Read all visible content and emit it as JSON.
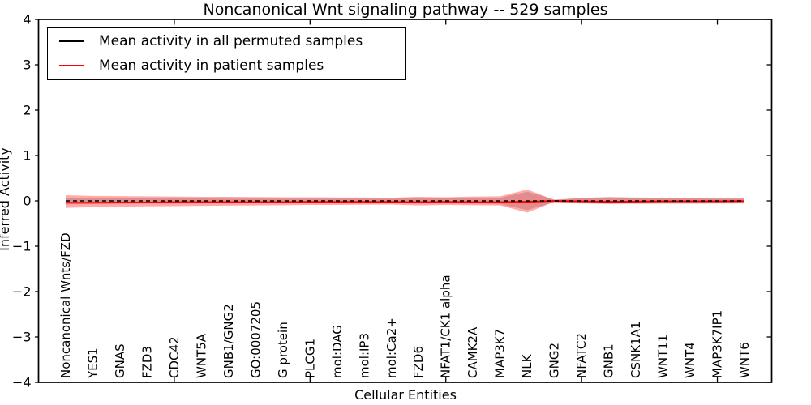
{
  "title": "Noncanonical Wnt signaling pathway -- 529 samples",
  "legend": {
    "items": [
      {
        "label": "Mean activity in all permuted samples",
        "color": "#000000"
      },
      {
        "label": "Mean activity in patient samples",
        "color": "#ff0000"
      }
    ]
  },
  "chart_data": {
    "type": "line",
    "title": "Noncanonical Wnt signaling pathway -- 529 samples",
    "xlabel": "Cellular Entities",
    "ylabel": "Inferred Activity",
    "xlim": [
      0,
      27
    ],
    "ylim": [
      -4,
      4
    ],
    "grid": false,
    "legend_position": "upper left",
    "ytick_values": [
      4,
      3,
      2,
      1,
      0,
      -1,
      -2,
      -3,
      -4
    ],
    "ytick_labels": [
      "4",
      "3",
      "2",
      "1",
      "0",
      "−1",
      "−2",
      "−3",
      "−4"
    ],
    "xtick_major_positions": [
      5,
      10,
      15,
      20,
      25
    ],
    "categories": [
      "Noncanonical Wnts/FZD",
      "YES1",
      "GNAS",
      "FZD3",
      "CDC42",
      "WNT5A",
      "GNB1/GNG2",
      "GO:0007205",
      "G protein",
      "PLCG1",
      "mol:DAG",
      "mol:IP3",
      "mol:Ca2+",
      "FZD6",
      "NFAT1/CK1 alpha",
      "CAMK2A",
      "MAP3K7",
      "NLK",
      "GNG2",
      "NFATC2",
      "GNB1",
      "CSNK1A1",
      "WNT11",
      "WNT4",
      "MAP3K7IP1",
      "WNT6"
    ],
    "series": [
      {
        "name": "Mean activity in all permuted samples",
        "color": "#000000",
        "style": "dashed",
        "width": 1.4,
        "values": [
          0,
          0,
          0,
          0,
          0,
          0,
          0,
          0,
          0,
          0,
          0,
          0,
          0,
          0,
          0,
          0,
          0,
          0,
          0,
          0,
          0,
          0,
          0,
          0,
          0,
          0
        ]
      },
      {
        "name": "Mean activity in patient samples",
        "color": "#ff0000",
        "style": "solid",
        "width": 2,
        "values": [
          -0.04,
          -0.04,
          -0.035,
          -0.035,
          -0.03,
          -0.03,
          -0.03,
          -0.03,
          -0.03,
          -0.025,
          -0.025,
          -0.025,
          -0.025,
          -0.03,
          -0.025,
          -0.03,
          -0.03,
          -0.02,
          0,
          -0.01,
          -0.02,
          -0.015,
          -0.01,
          -0.01,
          -0.01,
          -0.005
        ]
      }
    ],
    "bands": [
      {
        "name": "permuted-samples-std-band",
        "color": "rgba(110,110,110,0.30)",
        "top": [
          0.07,
          0.065,
          0.06,
          0.06,
          0.055,
          0.055,
          0.05,
          0.05,
          0.05,
          0.05,
          0.05,
          0.05,
          0.05,
          0.06,
          0.055,
          0.06,
          0.07,
          0.2,
          0.03,
          0.07,
          0.085,
          0.075,
          0.07,
          0.07,
          0.065,
          0.06
        ],
        "bottom": [
          -0.075,
          -0.07,
          -0.065,
          -0.06,
          -0.06,
          -0.055,
          -0.055,
          -0.05,
          -0.05,
          -0.05,
          -0.05,
          -0.05,
          -0.05,
          -0.06,
          -0.055,
          -0.06,
          -0.07,
          -0.2,
          -0.03,
          -0.06,
          -0.07,
          -0.07,
          -0.065,
          -0.065,
          -0.06,
          -0.055
        ]
      },
      {
        "name": "patient-samples-std-band",
        "color": "rgba(255,0,0,0.33)",
        "top": [
          0.125,
          0.11,
          0.105,
          0.1,
          0.095,
          0.09,
          0.09,
          0.085,
          0.08,
          0.08,
          0.075,
          0.075,
          0.07,
          0.09,
          0.08,
          0.095,
          0.1,
          0.25,
          0.02,
          0.06,
          0.08,
          0.07,
          0.06,
          0.055,
          0.05,
          0.05
        ],
        "bottom": [
          -0.155,
          -0.14,
          -0.13,
          -0.12,
          -0.115,
          -0.11,
          -0.105,
          -0.1,
          -0.095,
          -0.09,
          -0.09,
          -0.085,
          -0.08,
          -0.1,
          -0.09,
          -0.095,
          -0.1,
          -0.26,
          -0.02,
          -0.05,
          -0.06,
          -0.05,
          -0.045,
          -0.04,
          -0.04,
          -0.035
        ]
      }
    ]
  }
}
